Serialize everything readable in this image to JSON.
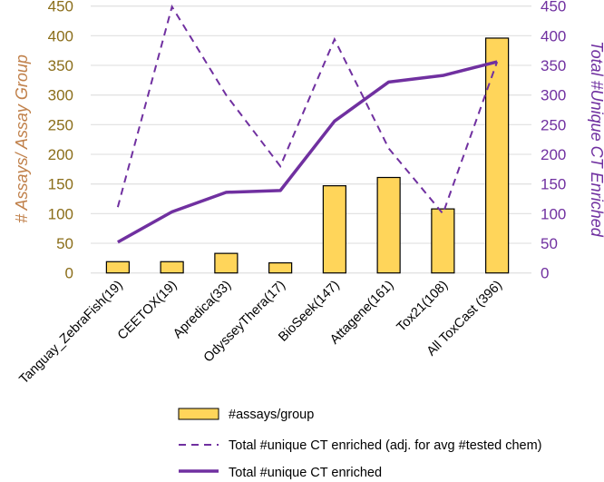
{
  "chart_data": {
    "type": "bar+line",
    "categories": [
      "Tanguay_ZebraFish(19)",
      "CEETOX(19)",
      "Apredica(33)",
      "OdysseyThera(17)",
      "BioSeek(147)",
      "Attagene(161)",
      "Tox21(108)",
      "All ToxCast (396)"
    ],
    "series": [
      {
        "name": "#assays/group",
        "type": "bar",
        "axis": "left",
        "color": "#FFD55A",
        "values": [
          19,
          19,
          33,
          17,
          147,
          161,
          108,
          396
        ]
      },
      {
        "name": "Total #unique CT enriched (adj. for avg #tested chem)",
        "type": "line-dashed",
        "axis": "right",
        "color": "#7030A0",
        "values": [
          111,
          449,
          300,
          180,
          394,
          210,
          100,
          356
        ]
      },
      {
        "name": "Total #unique CT enriched",
        "type": "line",
        "axis": "right",
        "color": "#7030A0",
        "values": [
          52,
          103,
          136,
          139,
          256,
          322,
          333,
          356
        ]
      }
    ],
    "ylabel": "# Assays/ Assay Group",
    "y2label": "Total #Unique CT Enriched",
    "ylim": [
      0,
      450
    ],
    "y2lim": [
      0,
      450
    ],
    "yticks": [
      0,
      50,
      100,
      150,
      200,
      250,
      300,
      350,
      400,
      450
    ],
    "grid": true,
    "legend": "bottom",
    "colors": {
      "left_axis_title": "#C0804A",
      "left_ticks": "#8B6E1A",
      "right_axis": "#7030A0",
      "grid": "#E3E3E3"
    }
  }
}
